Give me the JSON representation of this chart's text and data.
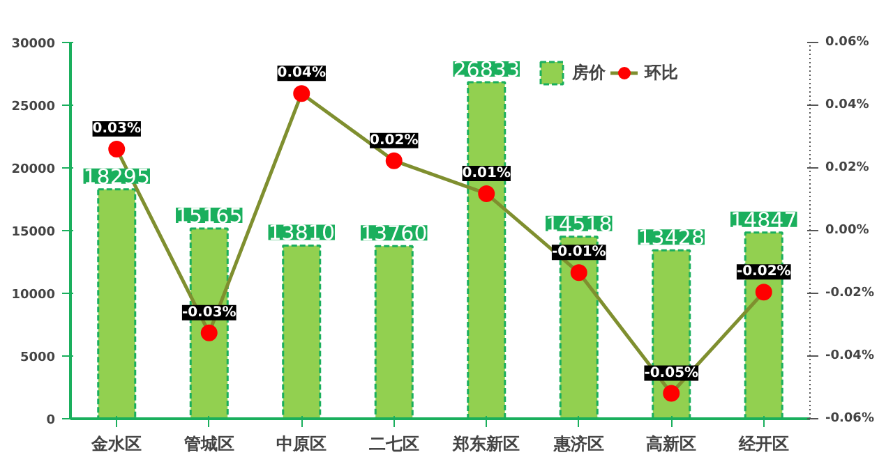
{
  "chart_data": {
    "type": "bar",
    "categories": [
      "金水区",
      "管城区",
      "中原区",
      "二七区",
      "郑东新区",
      "惠济区",
      "高新区",
      "经开区"
    ],
    "series": [
      {
        "name": "房价",
        "color": "#92d050",
        "values": [
          18295,
          15165,
          13810,
          13760,
          26833,
          14518,
          13428,
          14847
        ],
        "data_labels": true
      },
      {
        "name": "环比",
        "type": "line",
        "axis": "y2",
        "color": "#7f8f2f",
        "marker": "circle",
        "values": [
          0.026,
          -0.0326,
          0.0437,
          0.0223,
          0.0118,
          -0.0134,
          -0.0519,
          -0.0196
        ],
        "value_labels": [
          "0.03%",
          "-0.03%",
          "0.04%",
          "0.02%",
          "0.01%",
          "-0.01%",
          "-0.05%",
          "-0.02%"
        ]
      }
    ],
    "ylim": [
      0,
      30000
    ],
    "yticks": [
      0,
      5000,
      10000,
      15000,
      20000,
      25000,
      30000
    ],
    "y2lim": [
      -0.06,
      0.06
    ],
    "y2ticks": [
      {
        "value": -0.06,
        "label": "-0.06%"
      },
      {
        "value": -0.04,
        "label": "-0.04%"
      },
      {
        "value": -0.02,
        "label": "-0.02%"
      },
      {
        "value": 0,
        "label": "0.00%"
      },
      {
        "value": 0.02,
        "label": "0.02%"
      },
      {
        "value": 0.04,
        "label": "0.04%"
      },
      {
        "value": 0.06,
        "label": "0.06%"
      }
    ],
    "legend": "top",
    "grid": false
  }
}
